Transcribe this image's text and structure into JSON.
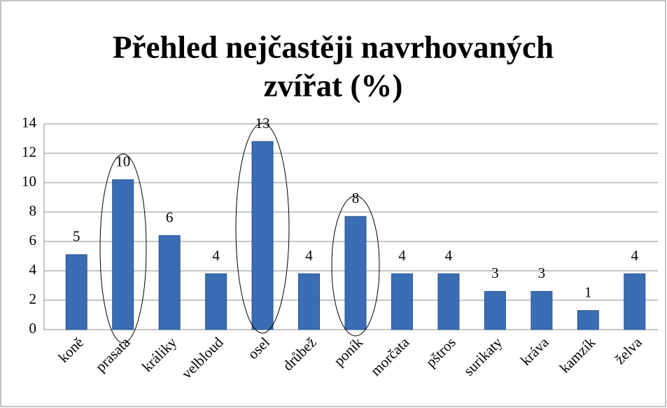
{
  "chart_data": {
    "type": "bar",
    "title": [
      "Přehled nejčastěji navrhovaných",
      "zvířat (%)"
    ],
    "categories": [
      "koně",
      "prasata",
      "králiky",
      "velbloud",
      "osel",
      "drůbež",
      "poník",
      "morčata",
      "pštros",
      "surikaty",
      "kráva",
      "kamzík",
      "želva"
    ],
    "values": [
      5.1,
      10.2,
      6.4,
      3.8,
      12.8,
      3.8,
      7.7,
      3.8,
      3.8,
      2.6,
      2.6,
      1.3,
      3.8
    ],
    "value_labels": [
      "5",
      "10",
      "6",
      "4",
      "13",
      "4",
      "8",
      "4",
      "4",
      "3",
      "3",
      "1",
      "4"
    ],
    "color": "#3b6db5",
    "ylim": [
      0,
      14
    ],
    "yticks": [
      0,
      2,
      4,
      6,
      8,
      10,
      12,
      14
    ],
    "grid": true
  }
}
